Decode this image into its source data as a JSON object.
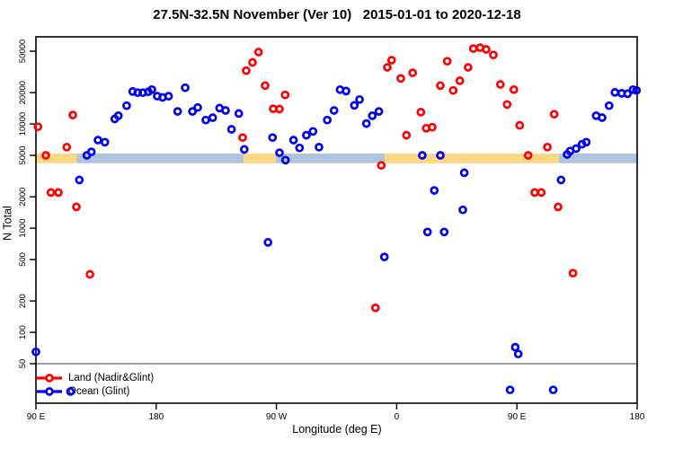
{
  "title": "27.5N-32.5N November (Ver 10)   2015-01-01 to 2020-12-18",
  "colors": {
    "land": "#FF0000",
    "ocean": "#0000EE",
    "band_land": "#FAD886",
    "band_ocean": "#B0C4DE",
    "ref_line": "#7F7F7F",
    "axis": "#000000",
    "background": "#FFFFFF"
  },
  "legend": {
    "items": [
      {
        "label": "Land (Nadir&Glint)",
        "color_key": "land"
      },
      {
        "label": "Ocean (Glint)",
        "color_key": "ocean"
      }
    ]
  },
  "chart_data": {
    "type": "scatter",
    "title": "27.5N-32.5N November (Ver 10)   2015-01-01 to 2020-12-18",
    "x_axis": {
      "label": "Longitude (deg E)",
      "range_deg": [
        90,
        540
      ],
      "note": "axis wraps eastward: 90E to 180, 90W, 0, 90E, 180",
      "ticks": [
        {
          "pos": 90,
          "label": "90 E"
        },
        {
          "pos": 180,
          "label": "180"
        },
        {
          "pos": 270,
          "label": "90 W"
        },
        {
          "pos": 360,
          "label": "0"
        },
        {
          "pos": 450,
          "label": "90 E"
        },
        {
          "pos": 540,
          "label": "180"
        }
      ]
    },
    "y_axis": {
      "label": "N Total",
      "scale": "log10",
      "range": [
        21,
        68000
      ],
      "ticks": [
        50,
        100,
        200,
        500,
        1000,
        2000,
        5000,
        10000,
        20000,
        50000
      ],
      "tick_labels": [
        "50",
        "100",
        "200",
        "500",
        "1000",
        "2000",
        "5000",
        "10000",
        "20000",
        "50000"
      ]
    },
    "reference_line": {
      "y": 50
    },
    "band": {
      "y_range": [
        4200,
        5200
      ],
      "land_segments_deg": [
        [
          90,
          120.5
        ],
        [
          245.5,
          269.5
        ],
        [
          351,
          481.5
        ]
      ],
      "ocean_segments_deg": [
        [
          120.5,
          245.5
        ],
        [
          269.5,
          351
        ],
        [
          481.5,
          540
        ]
      ]
    },
    "series": [
      {
        "name": "Land (Nadir&Glint)",
        "color_key": "land",
        "points": [
          [
            91.5,
            9400
          ],
          [
            97.4,
            5000
          ],
          [
            101.2,
            2200
          ],
          [
            106.8,
            2200
          ],
          [
            113.1,
            6000
          ],
          [
            117.6,
            12200
          ],
          [
            120.3,
            1600
          ],
          [
            130.4,
            360
          ],
          [
            244.7,
            7400
          ],
          [
            247.4,
            32500
          ],
          [
            252.1,
            39000
          ],
          [
            256.6,
            49000
          ],
          [
            261.5,
            23400
          ],
          [
            267.6,
            14000
          ],
          [
            272.3,
            13900
          ],
          [
            276.5,
            19000
          ],
          [
            344.1,
            172
          ],
          [
            348.5,
            4000
          ],
          [
            353.0,
            35000
          ],
          [
            356.2,
            41000
          ],
          [
            363.1,
            27400
          ],
          [
            367.3,
            7800
          ],
          [
            372.0,
            31000
          ],
          [
            378.1,
            13000
          ],
          [
            382.1,
            9100
          ],
          [
            386.6,
            9300
          ],
          [
            392.7,
            23400
          ],
          [
            397.9,
            40000
          ],
          [
            402.3,
            21000
          ],
          [
            407.3,
            26000
          ],
          [
            413.5,
            35000
          ],
          [
            417.4,
            53000
          ],
          [
            422.5,
            54000
          ],
          [
            427.0,
            52000
          ],
          [
            432.4,
            46000
          ],
          [
            437.6,
            24000
          ],
          [
            442.7,
            15400
          ],
          [
            447.7,
            21400
          ],
          [
            452.1,
            9700
          ],
          [
            458.4,
            5000
          ],
          [
            463.3,
            2200
          ],
          [
            468.2,
            2200
          ],
          [
            472.8,
            6000
          ],
          [
            477.9,
            12400
          ],
          [
            480.8,
            1600
          ],
          [
            492.0,
            370
          ]
        ]
      },
      {
        "name": "Ocean (Glint)",
        "color_key": "ocean",
        "points": [
          [
            90.0,
            65
          ],
          [
            115.8,
            27
          ],
          [
            122.5,
            2900
          ],
          [
            128.1,
            5000
          ],
          [
            131.5,
            5400
          ],
          [
            136.4,
            7000
          ],
          [
            141.6,
            6700
          ],
          [
            149.0,
            11200
          ],
          [
            151.7,
            12000
          ],
          [
            157.9,
            15000
          ],
          [
            162.4,
            20500
          ],
          [
            166.2,
            20000
          ],
          [
            170.0,
            20000
          ],
          [
            174.1,
            20400
          ],
          [
            176.8,
            21400
          ],
          [
            180.8,
            18500
          ],
          [
            184.8,
            18000
          ],
          [
            189.3,
            18500
          ],
          [
            196.1,
            13200
          ],
          [
            201.7,
            22300
          ],
          [
            207.2,
            13200
          ],
          [
            211.1,
            14400
          ],
          [
            217.1,
            10900
          ],
          [
            222.3,
            11500
          ],
          [
            227.4,
            14200
          ],
          [
            231.9,
            13500
          ],
          [
            236.4,
            8900
          ],
          [
            241.8,
            12600
          ],
          [
            245.9,
            5700
          ],
          [
            263.7,
            730
          ],
          [
            267.1,
            7400
          ],
          [
            272.3,
            5300
          ],
          [
            276.8,
            4500
          ],
          [
            282.8,
            7000
          ],
          [
            287.3,
            5900
          ],
          [
            292.4,
            7800
          ],
          [
            297.4,
            8500
          ],
          [
            301.9,
            6000
          ],
          [
            308.1,
            10900
          ],
          [
            313.1,
            13500
          ],
          [
            317.6,
            21400
          ],
          [
            322.1,
            20700
          ],
          [
            328.3,
            15100
          ],
          [
            332.2,
            17200
          ],
          [
            337.3,
            10100
          ],
          [
            341.8,
            12000
          ],
          [
            346.7,
            13200
          ],
          [
            350.8,
            530
          ],
          [
            379.2,
            5000
          ],
          [
            383.1,
            920
          ],
          [
            388.2,
            2300
          ],
          [
            392.7,
            5000
          ],
          [
            395.6,
            920
          ],
          [
            409.5,
            1500
          ],
          [
            410.6,
            3400
          ],
          [
            444.9,
            28
          ],
          [
            448.7,
            72
          ],
          [
            451.0,
            62
          ],
          [
            477.2,
            28
          ],
          [
            483.0,
            2900
          ],
          [
            487.5,
            5100
          ],
          [
            489.8,
            5500
          ],
          [
            494.3,
            5800
          ],
          [
            498.8,
            6400
          ],
          [
            501.9,
            6700
          ],
          [
            509.3,
            12000
          ],
          [
            513.8,
            11500
          ],
          [
            519.0,
            15000
          ],
          [
            523.4,
            20100
          ],
          [
            528.4,
            19700
          ],
          [
            532.8,
            19500
          ],
          [
            536.9,
            21400
          ],
          [
            539.5,
            21000
          ]
        ]
      }
    ],
    "legend_position": "bottom-left"
  }
}
